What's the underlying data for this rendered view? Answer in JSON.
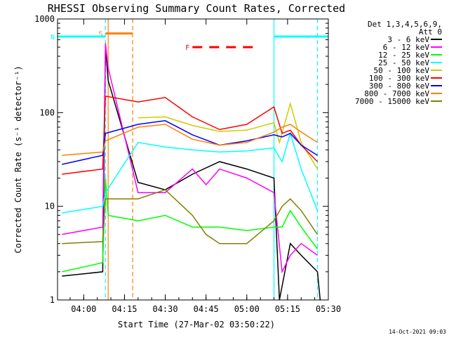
{
  "chart_data": {
    "type": "line",
    "title": "RHESSI Observing Summary Count Rates, Corrected",
    "xlabel": "Start Time (27-Mar-02 03:50:22)",
    "ylabel": "Corrected Count Rate (s⁻¹ detector⁻¹)",
    "ylog": true,
    "ylim": [
      1,
      1000
    ],
    "xlim": [
      "03:50:22",
      "05:30:00"
    ],
    "x_ticks": [
      "04:00",
      "04:15",
      "04:30",
      "04:45",
      "05:00",
      "05:15",
      "05:30"
    ],
    "y_ticks": [
      "1",
      "10",
      "100",
      "1000"
    ],
    "grid": false,
    "legend": {
      "placement": "right",
      "header": [
        "Det 1,3,4,5,6,9,",
        "Att 0"
      ],
      "entries": [
        {
          "label": "3 - 6 keV",
          "color": "#000000"
        },
        {
          "label": "6 - 12 keV",
          "color": "#ff00ff"
        },
        {
          "label": "12 - 25 keV",
          "color": "#00ff00"
        },
        {
          "label": "25 - 50 keV",
          "color": "#00ffff"
        },
        {
          "label": "50 - 100 keV",
          "color": "#cccc00"
        },
        {
          "label": "100 - 300 keV",
          "color": "#ff0000"
        },
        {
          "label": "300 - 800 keV",
          "color": "#0000ff"
        },
        {
          "label": "800 - 7000 keV",
          "color": "#ff8000"
        },
        {
          "label": "7000 - 15000 keV",
          "color": "#808000"
        }
      ]
    },
    "series": [
      {
        "color": "#000000",
        "points": [
          [
            "03:52",
            1.8
          ],
          [
            "04:07",
            2
          ],
          [
            "04:08",
            500
          ],
          [
            "04:09",
            220
          ],
          [
            "04:20",
            18
          ],
          [
            "04:30",
            15
          ],
          [
            "04:40",
            22
          ],
          [
            "04:50",
            30
          ],
          [
            "05:00",
            25
          ],
          [
            "05:10",
            20
          ],
          [
            "05:12",
            1
          ],
          [
            "05:16",
            4
          ],
          [
            "05:20",
            3
          ],
          [
            "05:26",
            2
          ],
          [
            "05:27",
            1
          ]
        ]
      },
      {
        "color": "#ff00ff",
        "points": [
          [
            "03:52",
            5
          ],
          [
            "04:07",
            6
          ],
          [
            "04:08",
            550
          ],
          [
            "04:09",
            300
          ],
          [
            "04:20",
            14
          ],
          [
            "04:30",
            14
          ],
          [
            "04:40",
            25
          ],
          [
            "04:45",
            17
          ],
          [
            "04:50",
            25
          ],
          [
            "05:00",
            20
          ],
          [
            "05:10",
            14
          ],
          [
            "05:13",
            2
          ],
          [
            "05:16",
            3
          ],
          [
            "05:20",
            4
          ],
          [
            "05:26",
            3
          ]
        ]
      },
      {
        "color": "#00ff00",
        "points": [
          [
            "03:52",
            2
          ],
          [
            "04:07",
            2.5
          ],
          [
            "04:08",
            20
          ],
          [
            "04:09",
            8
          ],
          [
            "04:20",
            7
          ],
          [
            "04:30",
            8
          ],
          [
            "04:40",
            6
          ],
          [
            "04:50",
            6
          ],
          [
            "05:00",
            5.5
          ],
          [
            "05:10",
            6
          ],
          [
            "05:13",
            6
          ],
          [
            "05:16",
            9
          ],
          [
            "05:20",
            6
          ],
          [
            "05:26",
            3.5
          ]
        ]
      },
      {
        "color": "#00ffff",
        "points": [
          [
            "03:52",
            8.5
          ],
          [
            "04:07",
            10
          ],
          [
            "04:08",
            14
          ],
          [
            "04:20",
            48
          ],
          [
            "04:30",
            43
          ],
          [
            "04:40",
            40
          ],
          [
            "04:50",
            38
          ],
          [
            "05:00",
            39
          ],
          [
            "05:10",
            42
          ],
          [
            "05:13",
            30
          ],
          [
            "05:16",
            60
          ],
          [
            "05:20",
            25
          ],
          [
            "05:26",
            9
          ]
        ]
      },
      {
        "color": "#cccc00",
        "points": [
          [
            "04:20",
            88
          ],
          [
            "04:30",
            90
          ],
          [
            "04:40",
            73
          ],
          [
            "04:50",
            63
          ],
          [
            "05:00",
            65
          ],
          [
            "05:10",
            78
          ],
          [
            "05:12",
            48
          ],
          [
            "05:16",
            125
          ],
          [
            "05:20",
            48
          ],
          [
            "05:26",
            25
          ]
        ]
      },
      {
        "color": "#ff0000",
        "points": [
          [
            "03:52",
            22
          ],
          [
            "04:07",
            25
          ],
          [
            "04:08",
            150
          ],
          [
            "04:20",
            130
          ],
          [
            "04:30",
            145
          ],
          [
            "04:40",
            90
          ],
          [
            "04:50",
            66
          ],
          [
            "05:00",
            75
          ],
          [
            "05:10",
            115
          ],
          [
            "05:13",
            60
          ],
          [
            "05:16",
            65
          ],
          [
            "05:20",
            45
          ],
          [
            "05:26",
            30
          ]
        ]
      },
      {
        "color": "#0000ff",
        "points": [
          [
            "03:52",
            28
          ],
          [
            "04:07",
            35
          ],
          [
            "04:08",
            60
          ],
          [
            "04:20",
            75
          ],
          [
            "04:30",
            82
          ],
          [
            "04:40",
            58
          ],
          [
            "04:50",
            45
          ],
          [
            "05:00",
            50
          ],
          [
            "05:10",
            58
          ],
          [
            "05:13",
            55
          ],
          [
            "05:16",
            60
          ],
          [
            "05:20",
            45
          ],
          [
            "05:26",
            35
          ]
        ]
      },
      {
        "color": "#ff8000",
        "points": [
          [
            "03:52",
            35
          ],
          [
            "04:07",
            38
          ],
          [
            "04:08",
            50
          ],
          [
            "04:20",
            70
          ],
          [
            "04:30",
            75
          ],
          [
            "04:40",
            52
          ],
          [
            "04:50",
            45
          ],
          [
            "05:00",
            48
          ],
          [
            "05:10",
            62
          ],
          [
            "05:13",
            70
          ],
          [
            "05:16",
            75
          ],
          [
            "05:20",
            62
          ],
          [
            "05:26",
            48
          ]
        ]
      },
      {
        "color": "#808000",
        "points": [
          [
            "03:52",
            4
          ],
          [
            "04:07",
            4.2
          ],
          [
            "04:08",
            12
          ],
          [
            "04:20",
            12
          ],
          [
            "04:30",
            15
          ],
          [
            "04:40",
            8
          ],
          [
            "04:45",
            5
          ],
          [
            "04:50",
            4
          ],
          [
            "05:00",
            4
          ],
          [
            "05:10",
            7
          ],
          [
            "05:13",
            10
          ],
          [
            "05:16",
            12
          ],
          [
            "05:20",
            9
          ],
          [
            "05:26",
            5
          ]
        ]
      }
    ],
    "state_bars": [
      {
        "label": "S",
        "color": "#ff8000",
        "start": "04:08",
        "end": "04:18",
        "level": 700
      },
      {
        "label": "F",
        "color": "#ff0000",
        "start": "04:40",
        "end": "05:04",
        "level": 500
      },
      {
        "label": "N",
        "color": "#00ffff",
        "start": "03:50:22",
        "end": "04:08",
        "level": 650
      },
      {
        "color": "#00ffff",
        "start": "05:10",
        "end": "05:30",
        "level": 650
      }
    ],
    "vertical_markers": [
      {
        "time": "04:08",
        "color": "#00ffff",
        "style": "dashed"
      },
      {
        "time": "04:09",
        "color": "#ff8000",
        "style": "solid"
      },
      {
        "time": "04:18",
        "color": "#ff8000",
        "style": "dashed"
      },
      {
        "time": "05:10",
        "color": "#00ffff",
        "style": "solid"
      },
      {
        "time": "05:26",
        "color": "#00ffff",
        "style": "dashed"
      }
    ]
  },
  "footer_timestamp": "14-Oct-2021 09:03"
}
